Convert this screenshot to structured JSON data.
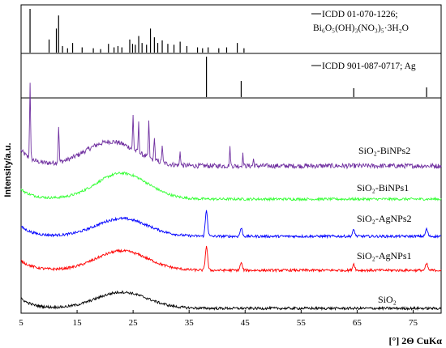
{
  "chart_data": {
    "type": "line",
    "ylabel": "Intensity/a.u.",
    "xlabel": "[°] 2Θ CuKα",
    "xlim": [
      5,
      80
    ],
    "x_ticks": [
      "5",
      "15",
      "25",
      "35",
      "45",
      "55",
      "65",
      "75"
    ],
    "x_tick_values": [
      5,
      15,
      25,
      35,
      45,
      55,
      65,
      75
    ],
    "reference_panels": [
      {
        "name": "ICDD 01-070-1226;",
        "formula": "Bi₆O₅(OH)₃(NO₃)₅·3H₂O",
        "peaks_2theta": [
          6.6,
          10.0,
          11.3,
          11.7,
          12.4,
          13.3,
          14.2,
          15.9,
          17.9,
          19.2,
          20.6,
          21.6,
          22.3,
          23.0,
          24.4,
          24.9,
          25.4,
          26.0,
          26.6,
          27.4,
          28.1,
          28.8,
          29.4,
          30.2,
          31.2,
          32.3,
          33.4,
          34.6,
          36.5,
          37.4,
          38.4,
          40.3,
          41.7,
          43.6,
          44.8
        ],
        "rel_intensity": [
          100,
          30,
          55,
          85,
          15,
          10,
          22,
          12,
          10,
          8,
          20,
          12,
          15,
          12,
          30,
          20,
          18,
          38,
          22,
          18,
          55,
          35,
          22,
          28,
          20,
          18,
          25,
          15,
          12,
          10,
          12,
          10,
          12,
          22,
          10
        ]
      },
      {
        "name": "ICDD 901-087-0717; Ag",
        "peaks_2theta": [
          38.1,
          44.3,
          64.4,
          77.4
        ],
        "rel_intensity": [
          100,
          40,
          22,
          24
        ]
      }
    ],
    "series": [
      {
        "name": "SiO₂-BiNPs2",
        "color": "#7030a0",
        "hump_center": 21.0,
        "hump_height": 30,
        "peaks_2theta": [
          6.6,
          11.7,
          25.0,
          26.0,
          27.8,
          28.8,
          30.2,
          33.4,
          42.3,
          44.6,
          46.5
        ],
        "peak_heights": [
          95,
          45,
          42,
          36,
          45,
          30,
          22,
          18,
          22,
          14,
          8
        ]
      },
      {
        "name": "SiO₂-BiNPs1",
        "color": "#33ff33",
        "hump_center": 23.0,
        "hump_height": 32,
        "peaks_2theta": [],
        "peak_heights": []
      },
      {
        "name": "SiO₂-AgNPs2",
        "color": "#0000ff",
        "hump_center": 23.0,
        "hump_height": 22,
        "peaks_2theta": [
          38.1,
          44.3,
          64.4,
          77.4
        ],
        "peak_heights": [
          32,
          10,
          8,
          9
        ]
      },
      {
        "name": "SiO₂-AgNPs1",
        "color": "#ff0000",
        "hump_center": 23.0,
        "hump_height": 24,
        "peaks_2theta": [
          38.1,
          44.3,
          64.4,
          77.4
        ],
        "peak_heights": [
          30,
          9,
          8,
          8
        ]
      },
      {
        "name": "SiO₂",
        "color": "#000000",
        "hump_center": 23.0,
        "hump_height": 20,
        "peaks_2theta": [],
        "peak_heights": []
      }
    ]
  }
}
